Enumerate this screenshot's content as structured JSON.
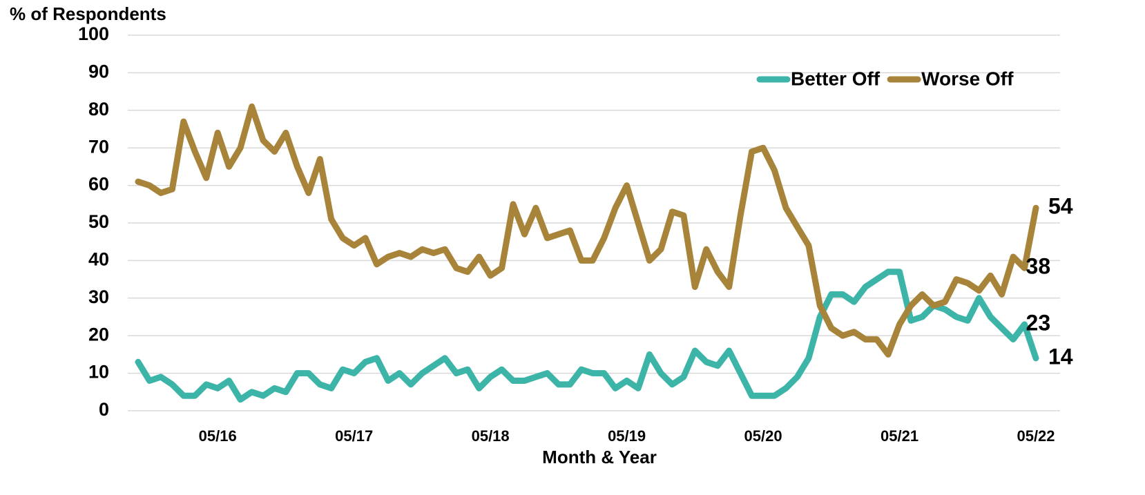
{
  "chart_data": {
    "type": "line",
    "y_axis_label": "% of Respondents",
    "x_axis_label": "Month & Year",
    "categories": [
      null,
      null,
      null,
      null,
      null,
      null,
      null,
      "05/16",
      null,
      null,
      null,
      null,
      null,
      null,
      null,
      null,
      null,
      null,
      null,
      "05/17",
      null,
      null,
      null,
      null,
      null,
      null,
      null,
      null,
      null,
      null,
      null,
      "05/18",
      null,
      null,
      null,
      null,
      null,
      null,
      null,
      null,
      null,
      null,
      null,
      "05/19",
      null,
      null,
      null,
      null,
      null,
      null,
      null,
      null,
      null,
      null,
      null,
      "05/20",
      null,
      null,
      null,
      null,
      null,
      null,
      null,
      null,
      null,
      null,
      null,
      "05/21",
      null,
      null,
      null,
      null,
      null,
      null,
      null,
      null,
      null,
      null,
      null,
      "05/22"
    ],
    "series": [
      {
        "name": "Better Off",
        "color": "#3cb4a8",
        "values": [
          13,
          8,
          9,
          7,
          4,
          4,
          7,
          6,
          8,
          3,
          5,
          4,
          6,
          5,
          10,
          10,
          7,
          6,
          11,
          10,
          13,
          14,
          8,
          10,
          7,
          10,
          12,
          14,
          10,
          11,
          6,
          9,
          11,
          8,
          8,
          9,
          10,
          7,
          7,
          11,
          10,
          10,
          6,
          8,
          6,
          15,
          10,
          7,
          9,
          16,
          13,
          12,
          16,
          10,
          4,
          4,
          4,
          6,
          9,
          14,
          25,
          31,
          31,
          29,
          33,
          35,
          37,
          37,
          24,
          25,
          28,
          27,
          25,
          24,
          30,
          25,
          22,
          19,
          23,
          14
        ]
      },
      {
        "name": "Worse Off",
        "color": "#a8843a",
        "values": [
          61,
          60,
          58,
          59,
          77,
          69,
          62,
          74,
          65,
          70,
          81,
          72,
          69,
          74,
          65,
          58,
          67,
          51,
          46,
          44,
          46,
          39,
          41,
          42,
          41,
          43,
          42,
          43,
          38,
          37,
          41,
          36,
          38,
          55,
          47,
          54,
          46,
          47,
          48,
          40,
          40,
          46,
          54,
          60,
          50,
          40,
          43,
          53,
          52,
          33,
          43,
          37,
          33,
          52,
          69,
          70,
          64,
          54,
          49,
          44,
          28,
          22,
          20,
          21,
          19,
          19,
          15,
          23,
          28,
          31,
          28,
          29,
          35,
          34,
          32,
          36,
          31,
          41,
          38,
          54
        ]
      }
    ],
    "ylim": [
      0,
      100
    ],
    "yticks": [
      0,
      10,
      20,
      30,
      40,
      50,
      60,
      70,
      80,
      90,
      100
    ],
    "grid": true,
    "legend": "top-right"
  }
}
